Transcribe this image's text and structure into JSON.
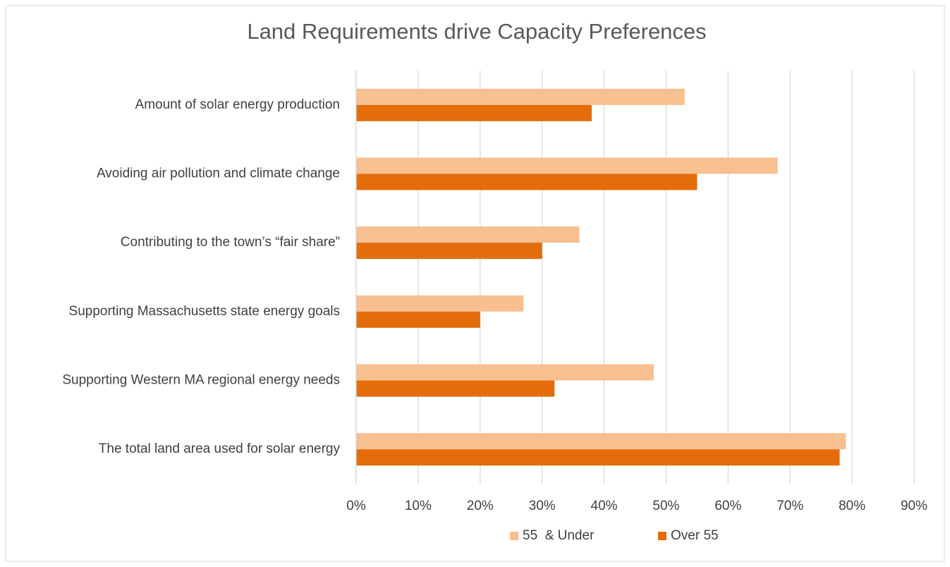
{
  "chart_data": {
    "type": "hbar",
    "title": "Land Requirements drive Capacity Preferences",
    "categories": [
      "Amount of solar energy production",
      "Avoiding air pollution and climate change",
      "Contributing to the town’s “fair share”",
      "Supporting Massachusetts state energy goals",
      "Supporting Western MA regional energy needs",
      "The total land area used for solar energy"
    ],
    "series": [
      {
        "name": "55  & Under",
        "color": "#f8bf91",
        "values": [
          53,
          68,
          36,
          27,
          48,
          79
        ]
      },
      {
        "name": "Over 55",
        "color": "#e46c0a",
        "values": [
          38,
          55,
          30,
          20,
          32,
          78
        ]
      }
    ],
    "xlim": [
      0,
      90
    ],
    "xticks": [
      {
        "value": 0,
        "label": "0%"
      },
      {
        "value": 10,
        "label": "10%"
      },
      {
        "value": 20,
        "label": "20%"
      },
      {
        "value": 30,
        "label": "30%"
      },
      {
        "value": 40,
        "label": "40%"
      },
      {
        "value": 50,
        "label": "50%"
      },
      {
        "value": 60,
        "label": "60%"
      },
      {
        "value": 70,
        "label": "70%"
      },
      {
        "value": 80,
        "label": "80%"
      },
      {
        "value": 90,
        "label": "90%"
      }
    ],
    "grid": true,
    "legend": "bottom"
  }
}
